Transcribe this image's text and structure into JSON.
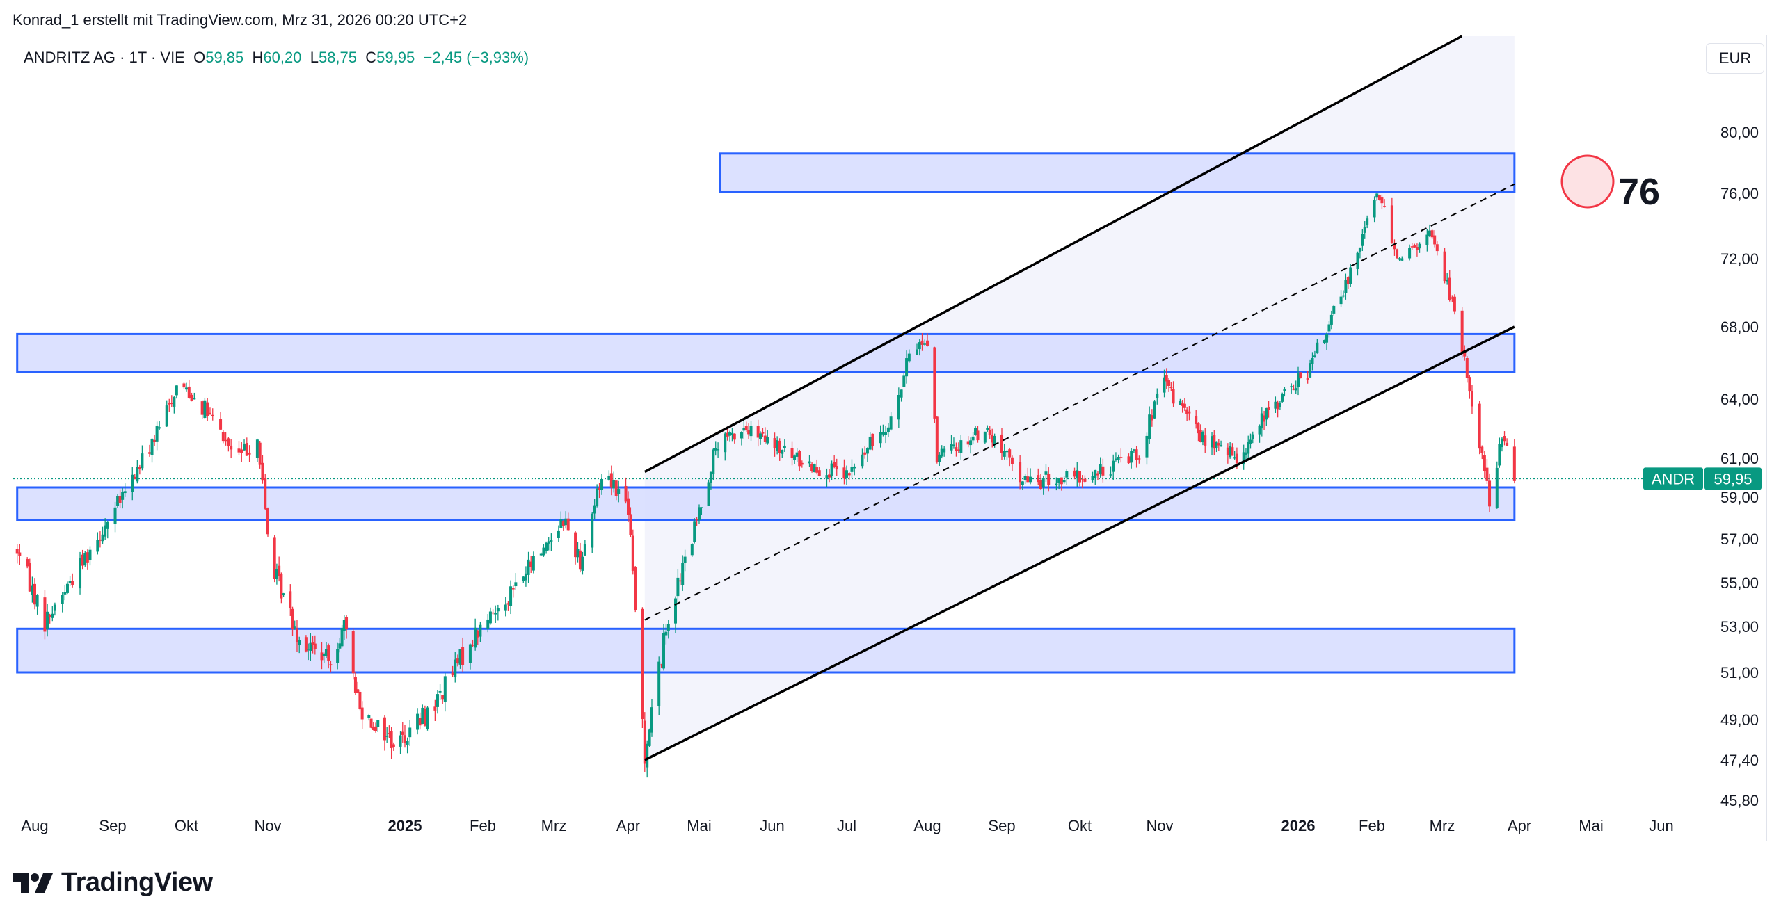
{
  "caption": "Konrad_1 erstellt mit TradingView.com, Mrz 31, 2026 00:20 UTC+2",
  "legend": {
    "symbol": "ANDRITZ AG · 1T · VIE",
    "open_label": "O",
    "open": "59,85",
    "high_label": "H",
    "high": "60,20",
    "low_label": "L",
    "low": "58,75",
    "close_label": "C",
    "close": "59,95",
    "change": "−2,45 (−3,93%)"
  },
  "currency": "EUR",
  "price_tag": {
    "symbol": "ANDR",
    "value": "59,95"
  },
  "annotation": {
    "value": "76"
  },
  "brand": "TradingView",
  "colors": {
    "up": "#089981",
    "down": "#f23645",
    "zone_fill": "#d6dcff",
    "zone_border": "#2962ff",
    "price_line": "#089981"
  },
  "chart_data": {
    "type": "candlestick",
    "y_axis_labels": [
      "80,00",
      "76,00",
      "72,00",
      "68,00",
      "64,00",
      "61,00",
      "59,00",
      "57,00",
      "55,00",
      "53,00",
      "51,00",
      "49,00",
      "47,40",
      "45,80"
    ],
    "x_axis_labels": [
      {
        "label": "Aug",
        "bold": false
      },
      {
        "label": "Sep",
        "bold": false
      },
      {
        "label": "Okt",
        "bold": false
      },
      {
        "label": "Nov",
        "bold": false
      },
      {
        "label": "2025",
        "bold": true
      },
      {
        "label": "Feb",
        "bold": false
      },
      {
        "label": "Mrz",
        "bold": false
      },
      {
        "label": "Apr",
        "bold": false
      },
      {
        "label": "Mai",
        "bold": false
      },
      {
        "label": "Jun",
        "bold": false
      },
      {
        "label": "Jul",
        "bold": false
      },
      {
        "label": "Aug",
        "bold": false
      },
      {
        "label": "Sep",
        "bold": false
      },
      {
        "label": "Okt",
        "bold": false
      },
      {
        "label": "Nov",
        "bold": false
      },
      {
        "label": "2026",
        "bold": true
      },
      {
        "label": "Feb",
        "bold": false
      },
      {
        "label": "Mrz",
        "bold": false
      },
      {
        "label": "Apr",
        "bold": false
      },
      {
        "label": "Mai",
        "bold": false
      },
      {
        "label": "Jun",
        "bold": false
      }
    ],
    "price_anchors": [
      {
        "date": "2024-07-25",
        "price": 56.5
      },
      {
        "date": "2024-08-05",
        "price": 53.2
      },
      {
        "date": "2024-08-20",
        "price": 56.0
      },
      {
        "date": "2024-09-05",
        "price": 59.0
      },
      {
        "date": "2024-09-20",
        "price": 62.5
      },
      {
        "date": "2024-09-28",
        "price": 65.0
      },
      {
        "date": "2024-10-08",
        "price": 63.5
      },
      {
        "date": "2024-10-20",
        "price": 61.0
      },
      {
        "date": "2024-10-28",
        "price": 62.0
      },
      {
        "date": "2024-11-02",
        "price": 56.0
      },
      {
        "date": "2024-11-15",
        "price": 52.5
      },
      {
        "date": "2024-11-28",
        "price": 51.5
      },
      {
        "date": "2024-12-05",
        "price": 53.0
      },
      {
        "date": "2024-12-12",
        "price": 49.5
      },
      {
        "date": "2024-12-28",
        "price": 48.0
      },
      {
        "date": "2025-01-12",
        "price": 49.5
      },
      {
        "date": "2025-01-28",
        "price": 52.5
      },
      {
        "date": "2025-02-15",
        "price": 55.0
      },
      {
        "date": "2025-03-05",
        "price": 58.0
      },
      {
        "date": "2025-03-12",
        "price": 56.0
      },
      {
        "date": "2025-03-22",
        "price": 60.5
      },
      {
        "date": "2025-04-01",
        "price": 58.5
      },
      {
        "date": "2025-04-05",
        "price": 52.0
      },
      {
        "date": "2025-04-08",
        "price": 47.6
      },
      {
        "date": "2025-04-18",
        "price": 53.5
      },
      {
        "date": "2025-04-28",
        "price": 57.0
      },
      {
        "date": "2025-05-08",
        "price": 61.5
      },
      {
        "date": "2025-05-20",
        "price": 62.5
      },
      {
        "date": "2025-06-10",
        "price": 61.0
      },
      {
        "date": "2025-07-01",
        "price": 60.0
      },
      {
        "date": "2025-07-20",
        "price": 63.5
      },
      {
        "date": "2025-07-26",
        "price": 67.0
      },
      {
        "date": "2025-08-02",
        "price": 67.2
      },
      {
        "date": "2025-08-05",
        "price": 61.0
      },
      {
        "date": "2025-08-25",
        "price": 62.5
      },
      {
        "date": "2025-09-10",
        "price": 59.8
      },
      {
        "date": "2025-10-05",
        "price": 60.0
      },
      {
        "date": "2025-10-25",
        "price": 61.5
      },
      {
        "date": "2025-11-02",
        "price": 65.0
      },
      {
        "date": "2025-11-20",
        "price": 62.0
      },
      {
        "date": "2025-12-05",
        "price": 61.0
      },
      {
        "date": "2025-12-20",
        "price": 63.5
      },
      {
        "date": "2026-01-05",
        "price": 65.5
      },
      {
        "date": "2026-01-20",
        "price": 70.0
      },
      {
        "date": "2026-02-03",
        "price": 76.2
      },
      {
        "date": "2026-02-12",
        "price": 72.0
      },
      {
        "date": "2026-02-25",
        "price": 73.5
      },
      {
        "date": "2026-03-04",
        "price": 70.0
      },
      {
        "date": "2026-03-10",
        "price": 66.0
      },
      {
        "date": "2026-03-20",
        "price": 59.0
      },
      {
        "date": "2026-03-25",
        "price": 62.0
      },
      {
        "date": "2026-03-30",
        "price": 59.95
      }
    ],
    "zones": [
      {
        "from": "2025-05-10",
        "to": "2026-03-30",
        "low": 76.1,
        "high": 78.6
      },
      {
        "from": "2024-07-25",
        "to": "2026-03-30",
        "low": 65.5,
        "high": 67.6
      },
      {
        "from": "2024-07-25",
        "to": "2026-03-30",
        "low": 57.9,
        "high": 59.5
      },
      {
        "from": "2024-07-25",
        "to": "2026-03-30",
        "low": 51.0,
        "high": 52.9
      }
    ],
    "channel": {
      "upper": [
        {
          "date": "2025-04-08",
          "price": 60.3
        },
        {
          "date": "2026-02-20",
          "price": 84.8
        }
      ],
      "middle": [
        {
          "date": "2025-04-08",
          "price": 53.3
        },
        {
          "date": "2026-03-30",
          "price": 76.6
        }
      ],
      "lower": [
        {
          "date": "2025-04-08",
          "price": 47.4
        },
        {
          "date": "2026-03-30",
          "price": 68.0
        }
      ]
    },
    "last_price": 59.95,
    "grid": false
  }
}
